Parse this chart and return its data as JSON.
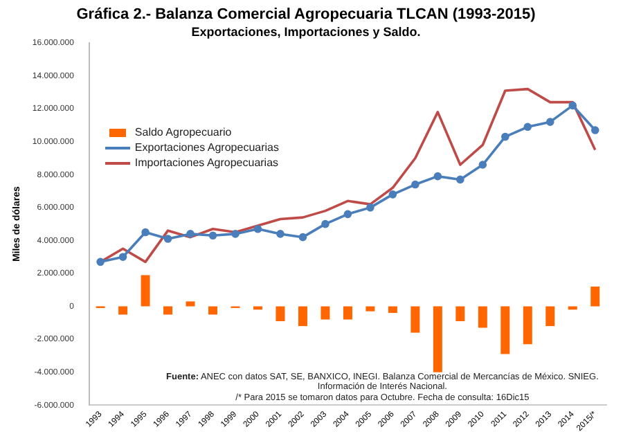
{
  "chart_data": {
    "type": "bar",
    "title": "Gráfica 2.- Balanza Comercial Agropecuaria TLCAN (1993-2015)",
    "subtitle": "Exportaciones, Importaciones y Saldo.",
    "ylabel": "Miles de dólares",
    "categories": [
      "1993",
      "1994",
      "1995",
      "1996",
      "1997",
      "1998",
      "1999",
      "2000",
      "2001",
      "2002",
      "2003",
      "2004",
      "2005",
      "2006",
      "2007",
      "2008",
      "2009",
      "2010",
      "2011",
      "2012",
      "2013",
      "2014",
      "2015/*"
    ],
    "series": [
      {
        "name": "Saldo Agropecuario",
        "color": "#ff6600",
        "values": [
          -100000,
          -500000,
          1900000,
          -500000,
          300000,
          -500000,
          -100000,
          -200000,
          -900000,
          -1200000,
          -800000,
          -800000,
          -300000,
          -400000,
          -1600000,
          -4000000,
          -900000,
          -1300000,
          -2900000,
          -2300000,
          -1200000,
          -200000,
          1200000
        ]
      },
      {
        "name": "Exportaciones Agropecuarias",
        "type": "line",
        "color": "#4a7ebb",
        "marker": "circle",
        "values": [
          2700000,
          3000000,
          4500000,
          4100000,
          4400000,
          4300000,
          4400000,
          4700000,
          4400000,
          4200000,
          5000000,
          5600000,
          6000000,
          6800000,
          7400000,
          7900000,
          7700000,
          8600000,
          10300000,
          10900000,
          11200000,
          12200000,
          10700000
        ]
      },
      {
        "name": "Importaciones Agropecuarias",
        "type": "line",
        "color": "#be4b48",
        "marker": "none",
        "values": [
          2700000,
          3500000,
          2700000,
          4600000,
          4200000,
          4700000,
          4500000,
          4900000,
          5300000,
          5400000,
          5800000,
          6400000,
          6200000,
          7200000,
          9000000,
          11800000,
          8600000,
          9800000,
          13100000,
          13200000,
          12400000,
          12400000,
          9500000
        ]
      }
    ],
    "ylim": [
      -6000000,
      16000000
    ],
    "yticks": [
      {
        "value": -6000000,
        "label": "-6.000.000"
      },
      {
        "value": -4000000,
        "label": "-4.000.000"
      },
      {
        "value": -2000000,
        "label": "-2.000.000"
      },
      0,
      {
        "value": 2000000,
        "label": "2.000.000"
      },
      {
        "value": 4000000,
        "label": "4.000.000"
      },
      {
        "value": 6000000,
        "label": "6.000.000"
      },
      {
        "value": 8000000,
        "label": "8.000.000"
      },
      {
        "value": 10000000,
        "label": "10.000.000"
      },
      {
        "value": 12000000,
        "label": "12.000.000"
      },
      {
        "value": 14000000,
        "label": "14.000.000"
      },
      {
        "value": 16000000,
        "label": "16.000.000"
      }
    ],
    "grid": false,
    "legend": "top left",
    "line_style": "solid",
    "annotations": [
      "Fuente: ANEC con datos  SAT, SE, BANXICO, INEGI. Balanza Comercial de Mercancías de México. SNIEG. Información de Interés Nacional.",
      "/* Para 2015 se tomaron datos para Octubre. Fecha de consulta: 16Dic15"
    ]
  }
}
